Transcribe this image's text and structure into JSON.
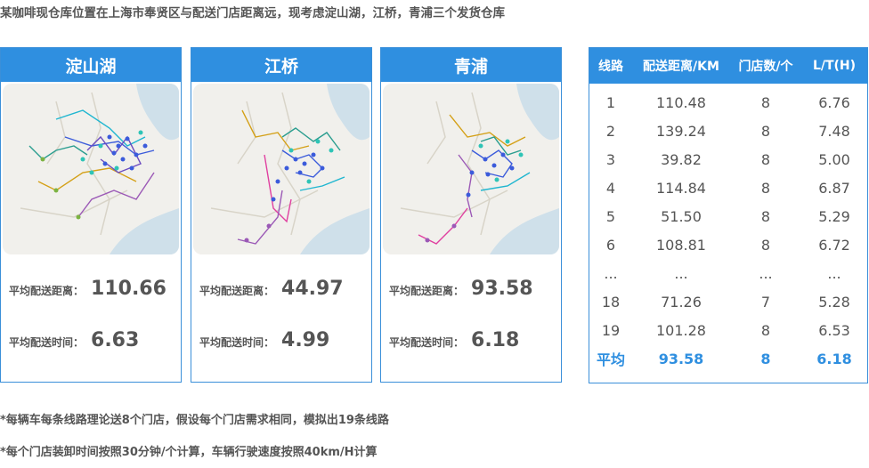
{
  "title": "某咖啡现仓库位置在上海市奉贤区与配送门店距离远，现考虑淀山湖，江桥，青浦三个发货仓库",
  "cards": [
    {
      "name": "淀山湖",
      "distance_label": "平均配送距离：",
      "distance": "110.66",
      "time_label": "平均配送时间：",
      "time": "6.63"
    },
    {
      "name": "江桥",
      "distance_label": "平均配送距离：",
      "distance": "44.97",
      "time_label": "平均配送时间：",
      "time": "4.99"
    },
    {
      "name": "青浦",
      "distance_label": "平均配送距离：",
      "distance": "93.58",
      "time_label": "平均配送时间：",
      "time": "6.18"
    }
  ],
  "table": {
    "headers": [
      "线路",
      "配送距离/KM",
      "门店数/个",
      "L/T(H)"
    ],
    "rows": [
      [
        "1",
        "110.48",
        "8",
        "6.76"
      ],
      [
        "2",
        "139.24",
        "8",
        "7.48"
      ],
      [
        "3",
        "39.82",
        "8",
        "5.00"
      ],
      [
        "4",
        "114.84",
        "8",
        "6.87"
      ],
      [
        "5",
        "51.50",
        "8",
        "5.29"
      ],
      [
        "6",
        "108.81",
        "8",
        "6.72"
      ],
      [
        "...",
        "...",
        "...",
        "..."
      ],
      [
        "18",
        "71.26",
        "7",
        "5.28"
      ],
      [
        "19",
        "101.28",
        "8",
        "6.53"
      ],
      [
        "平均",
        "93.58",
        "8",
        "6.18"
      ]
    ]
  },
  "notes": [
    "*每辆车每条线路理论送8个门店，假设每个门店需求相同，模拟出19条线路",
    "*每个门店装卸时间按照30分钟/个计算，车辆行驶速度按照40km/H计算"
  ],
  "colors": {
    "accent": "#2f8fe0",
    "text": "#555555"
  }
}
